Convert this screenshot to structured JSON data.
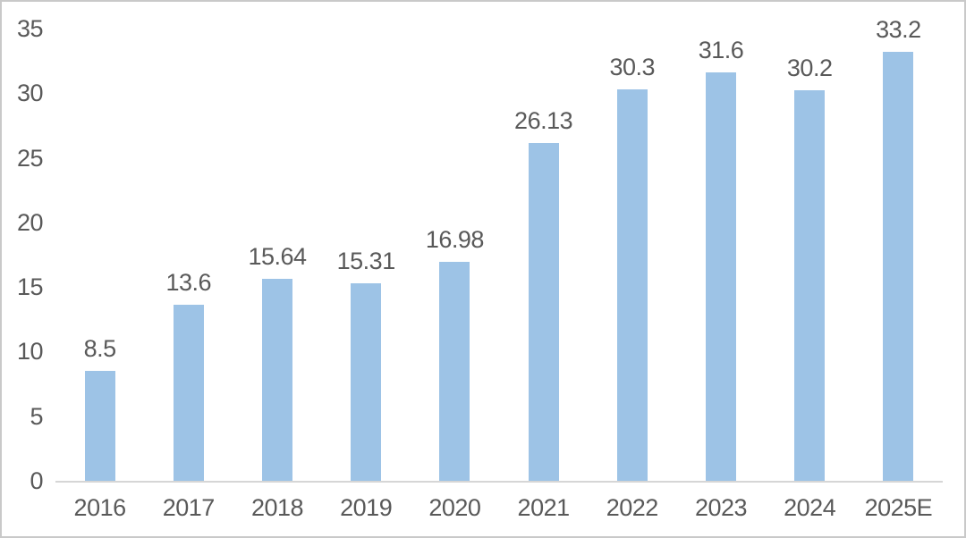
{
  "chart_data": {
    "type": "bar",
    "categories": [
      "2016",
      "2017",
      "2018",
      "2019",
      "2020",
      "2021",
      "2022",
      "2023",
      "2024",
      "2025E"
    ],
    "values": [
      8.5,
      13.6,
      15.64,
      15.31,
      16.98,
      26.13,
      30.3,
      31.6,
      30.2,
      33.2
    ],
    "data_labels": [
      "8.5",
      "13.6",
      "15.64",
      "15.31",
      "16.98",
      "26.13",
      "30.3",
      "31.6",
      "30.2",
      "33.2"
    ],
    "title": "",
    "xlabel": "",
    "ylabel": "",
    "ylim": [
      0,
      35
    ],
    "yticks": [
      "0",
      "5",
      "10",
      "15",
      "20",
      "25",
      "30",
      "35"
    ],
    "grid": false,
    "legend_position": "none",
    "colors": {
      "bar_fill": "#9DC3E6",
      "label_text": "#595959",
      "axis_line": "#D6D6D6",
      "frame_border": "#C9C9C9",
      "background": "#FFFFFF"
    }
  }
}
